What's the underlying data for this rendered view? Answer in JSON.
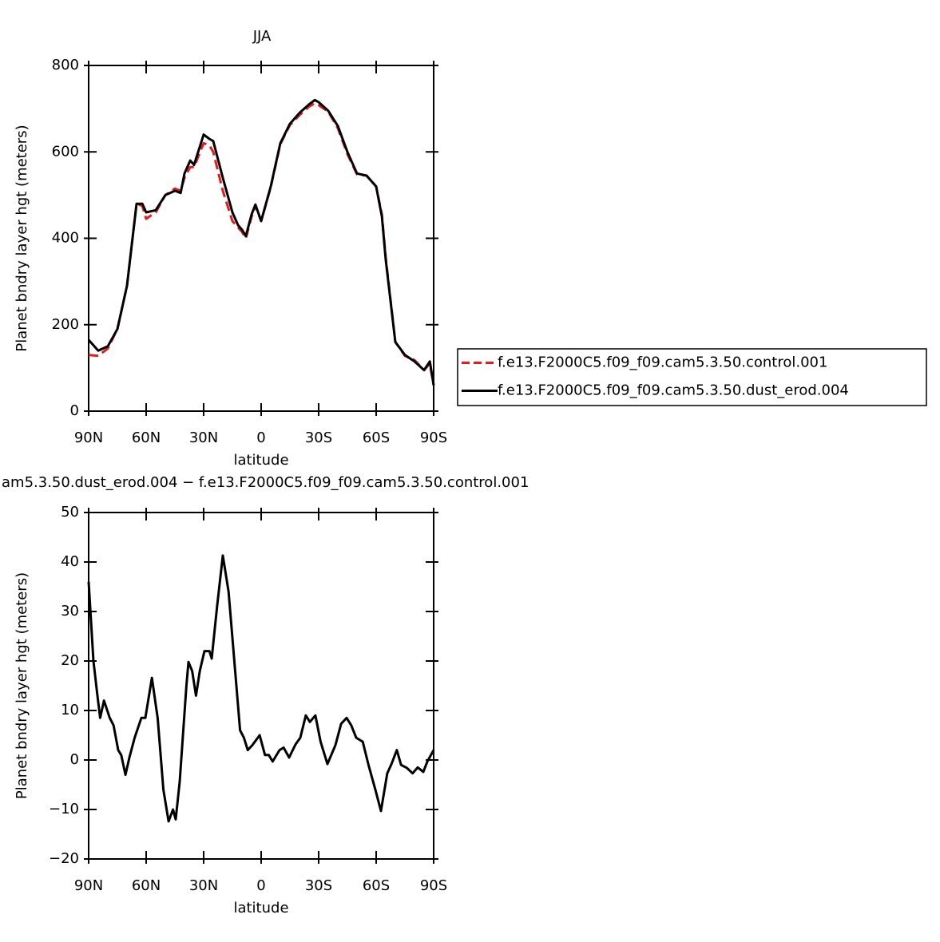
{
  "chart_data": [
    {
      "type": "line",
      "title": "JJA",
      "x_label": "latitude",
      "y_label": "Planet bndry layer hgt (meters)",
      "xlim": [
        90,
        -90
      ],
      "xticks": [
        {
          "value": 90,
          "label": "90N"
        },
        {
          "value": 60,
          "label": "60N"
        },
        {
          "value": 30,
          "label": "30N"
        },
        0,
        {
          "value": -30,
          "label": "30S"
        },
        {
          "value": -60,
          "label": "60S"
        },
        {
          "value": -90,
          "label": "90S"
        }
      ],
      "ylim": [
        0,
        800
      ],
      "yticks": [
        0,
        200,
        400,
        600,
        800
      ],
      "legend": "right",
      "x": [
        90,
        85,
        80,
        75,
        70,
        65,
        62,
        60,
        55,
        50,
        45,
        42,
        40,
        37,
        35,
        30,
        27,
        25,
        20,
        15,
        12,
        10,
        8,
        5,
        3,
        0,
        -5,
        -10,
        -15,
        -20,
        -25,
        -28,
        -30,
        -35,
        -40,
        -45,
        -50,
        -55,
        -60,
        -63,
        -65,
        -70,
        -75,
        -80,
        -85,
        -88,
        -90
      ],
      "series": [
        {
          "name": "f.e13.F2000C5.f09_f09.cam5.3.50.control.001",
          "color": "#e41a1c",
          "line_style": "dashed",
          "values": [
            130,
            128,
            145,
            190,
            290,
            480,
            475,
            445,
            460,
            500,
            515,
            510,
            540,
            565,
            565,
            620,
            615,
            600,
            510,
            440,
            425,
            415,
            400,
            450,
            475,
            440,
            518,
            618,
            662,
            685,
            705,
            712,
            708,
            693,
            655,
            595,
            548,
            545,
            520,
            455,
            355,
            160,
            128,
            118,
            95,
            110,
            60
          ]
        },
        {
          "name": "f.e13.F2000C5.f09_f09.cam5.3.50.dust_erod.004",
          "color": "#000000",
          "line_style": "solid",
          "values": [
            165,
            140,
            150,
            190,
            290,
            480,
            480,
            460,
            465,
            500,
            510,
            505,
            550,
            580,
            570,
            640,
            630,
            625,
            540,
            460,
            430,
            420,
            405,
            455,
            478,
            440,
            520,
            620,
            665,
            690,
            710,
            720,
            715,
            695,
            660,
            600,
            550,
            545,
            520,
            450,
            350,
            160,
            130,
            115,
            95,
            115,
            60
          ]
        }
      ]
    },
    {
      "type": "line",
      "title": "am5.3.50.dust_erod.004 − f.e13.F2000C5.f09_f09.cam5.3.50.control.001",
      "x_label": "latitude",
      "y_label": "Planet bndry layer hgt (meters)",
      "xlim": [
        90,
        -90
      ],
      "xticks": [
        {
          "value": 90,
          "label": "90N"
        },
        {
          "value": 60,
          "label": "60N"
        },
        {
          "value": 30,
          "label": "30N"
        },
        0,
        {
          "value": -30,
          "label": "30S"
        },
        {
          "value": -60,
          "label": "60S"
        },
        {
          "value": -90,
          "label": "90S"
        }
      ],
      "ylim": [
        -20,
        50
      ],
      "yticks": [
        {
          "value": -20,
          "label": "−20"
        },
        {
          "value": -10,
          "label": "−10"
        },
        0,
        10,
        20,
        30,
        40,
        50
      ],
      "x": [
        90,
        87.5,
        85.4,
        84,
        82,
        79,
        77,
        74.6,
        73,
        70.8,
        68.75,
        66,
        62.5,
        60.4,
        57,
        54,
        51,
        48.3,
        46,
        44.6,
        42.5,
        39,
        37.9,
        36,
        34,
        32,
        29.6,
        27,
        25.8,
        23,
        20,
        17,
        15,
        11,
        9,
        7,
        4.6,
        0.8,
        -2,
        -4,
        -6,
        -9.6,
        -11.7,
        -14.6,
        -18,
        -20.4,
        -23.3,
        -25.4,
        -28.3,
        -31,
        -34.6,
        -38.75,
        -41.7,
        -44.6,
        -47,
        -49.6,
        -53,
        -56,
        -59.6,
        -62.5,
        -65.8,
        -68,
        -70.8,
        -73,
        -76,
        -79,
        -81.7,
        -84.6,
        -86.7,
        -90
      ],
      "series": [
        {
          "color": "#000000",
          "line_style": "solid",
          "values": [
            36,
            20,
            13,
            8.5,
            12,
            8.5,
            7,
            2,
            1,
            -3,
            0.5,
            4.5,
            8.5,
            8.5,
            16.6,
            8.5,
            -6,
            -12.4,
            -10,
            -12,
            -4.4,
            15,
            19.8,
            18,
            13,
            18,
            22,
            22,
            20.5,
            31,
            41.3,
            34,
            24.7,
            6,
            4.5,
            2,
            3,
            5,
            1,
            1,
            -0.3,
            2,
            2.5,
            0.5,
            3.2,
            4.5,
            9,
            7.7,
            9,
            3.7,
            -0.8,
            3,
            7.3,
            8.5,
            7,
            4.5,
            3.7,
            -1,
            -6,
            -10.3,
            -2.7,
            -0.8,
            2,
            -1,
            -1.6,
            -2.7,
            -1.5,
            -2.4,
            -0.3,
            2
          ]
        }
      ]
    }
  ]
}
